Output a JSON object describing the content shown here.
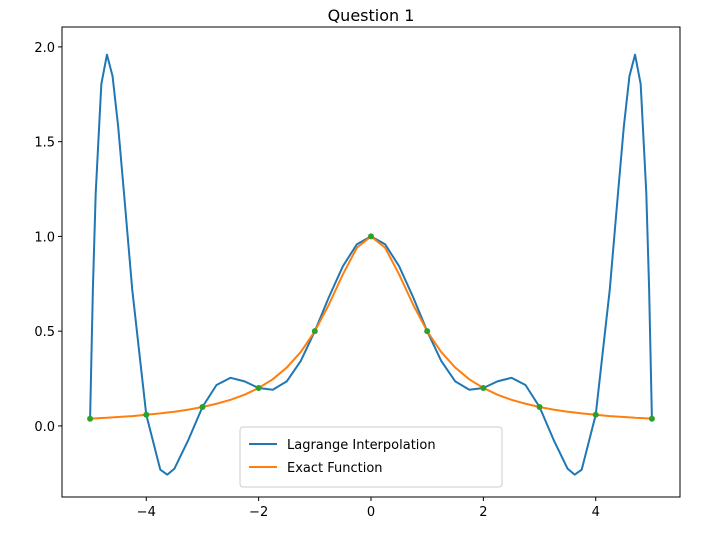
{
  "chart_data": {
    "type": "line",
    "title": "Question 1",
    "xlim": [
      -5.5,
      5.5
    ],
    "ylim": [
      -0.375,
      2.105
    ],
    "xticks": [
      {
        "value": -4,
        "label": "−4"
      },
      {
        "value": -2,
        "label": "−2"
      },
      0,
      2,
      4
    ],
    "yticks": [
      {
        "value": 0,
        "label": "0.0"
      },
      {
        "value": 0.5,
        "label": "0.5"
      },
      {
        "value": 1,
        "label": "1.0"
      },
      {
        "value": 1.5,
        "label": "1.5"
      },
      {
        "value": 2,
        "label": "2.0"
      }
    ],
    "legend": "lower center",
    "series": [
      {
        "name": "Lagrange Interpolation",
        "color": "#1f77b4",
        "x": [
          -5,
          -4.95,
          -4.9,
          -4.8,
          -4.7,
          -4.6,
          -4.5,
          -4.4,
          -4.25,
          -4,
          -3.75,
          -3.625,
          -3.5,
          -3.25,
          -3,
          -2.75,
          -2.5,
          -2.25,
          -2,
          -1.75,
          -1.5,
          -1.25,
          -1,
          -0.75,
          -0.5,
          -0.25,
          0,
          0.25,
          0.5,
          0.75,
          1,
          1.25,
          1.5,
          1.75,
          2,
          2.25,
          2.5,
          2.75,
          3,
          3.25,
          3.5,
          3.625,
          3.75,
          4,
          4.25,
          4.4,
          4.5,
          4.6,
          4.7,
          4.8,
          4.9,
          4.95,
          5
        ],
        "values": [
          0.038,
          0.726,
          1.23,
          1.804,
          1.959,
          1.846,
          1.579,
          1.24,
          0.72,
          0.059,
          -0.231,
          -0.257,
          -0.226,
          -0.073,
          0.1,
          0.216,
          0.254,
          0.235,
          0.2,
          0.191,
          0.235,
          0.343,
          0.5,
          0.679,
          0.843,
          0.959,
          1,
          0.959,
          0.843,
          0.679,
          0.5,
          0.343,
          0.235,
          0.191,
          0.2,
          0.235,
          0.254,
          0.216,
          0.1,
          -0.073,
          -0.226,
          -0.257,
          -0.231,
          0.059,
          0.72,
          1.24,
          1.579,
          1.846,
          1.959,
          1.804,
          1.23,
          0.726,
          0.038
        ]
      },
      {
        "name": "Exact Function",
        "color": "#ff7f0e",
        "x": [
          -5,
          -4.95,
          -4.9,
          -4.8,
          -4.7,
          -4.6,
          -4.5,
          -4.4,
          -4.25,
          -4,
          -3.75,
          -3.625,
          -3.5,
          -3.25,
          -3,
          -2.75,
          -2.5,
          -2.25,
          -2,
          -1.75,
          -1.5,
          -1.25,
          -1,
          -0.75,
          -0.5,
          -0.25,
          0,
          0.25,
          0.5,
          0.75,
          1,
          1.25,
          1.5,
          1.75,
          2,
          2.25,
          2.5,
          2.75,
          3,
          3.25,
          3.5,
          3.625,
          3.75,
          4,
          4.25,
          4.4,
          4.5,
          4.6,
          4.7,
          4.8,
          4.9,
          4.95,
          5
        ],
        "values": [
          0.038,
          0.039,
          0.04,
          0.042,
          0.043,
          0.045,
          0.047,
          0.049,
          0.052,
          0.059,
          0.066,
          0.071,
          0.075,
          0.086,
          0.1,
          0.117,
          0.138,
          0.165,
          0.2,
          0.246,
          0.308,
          0.39,
          0.5,
          0.64,
          0.8,
          0.941,
          1,
          0.941,
          0.8,
          0.64,
          0.5,
          0.39,
          0.308,
          0.246,
          0.2,
          0.165,
          0.138,
          0.117,
          0.1,
          0.086,
          0.075,
          0.071,
          0.066,
          0.059,
          0.052,
          0.049,
          0.047,
          0.045,
          0.043,
          0.042,
          0.04,
          0.039,
          0.038
        ]
      },
      {
        "color": "#2ca02c",
        "marker": "dot",
        "x": [
          -5,
          -4,
          -3,
          -2,
          -1,
          0,
          1,
          2,
          3,
          4,
          5
        ],
        "values": [
          0.038,
          0.059,
          0.1,
          0.2,
          0.5,
          1,
          0.5,
          0.2,
          0.1,
          0.059,
          0.038
        ]
      }
    ]
  }
}
